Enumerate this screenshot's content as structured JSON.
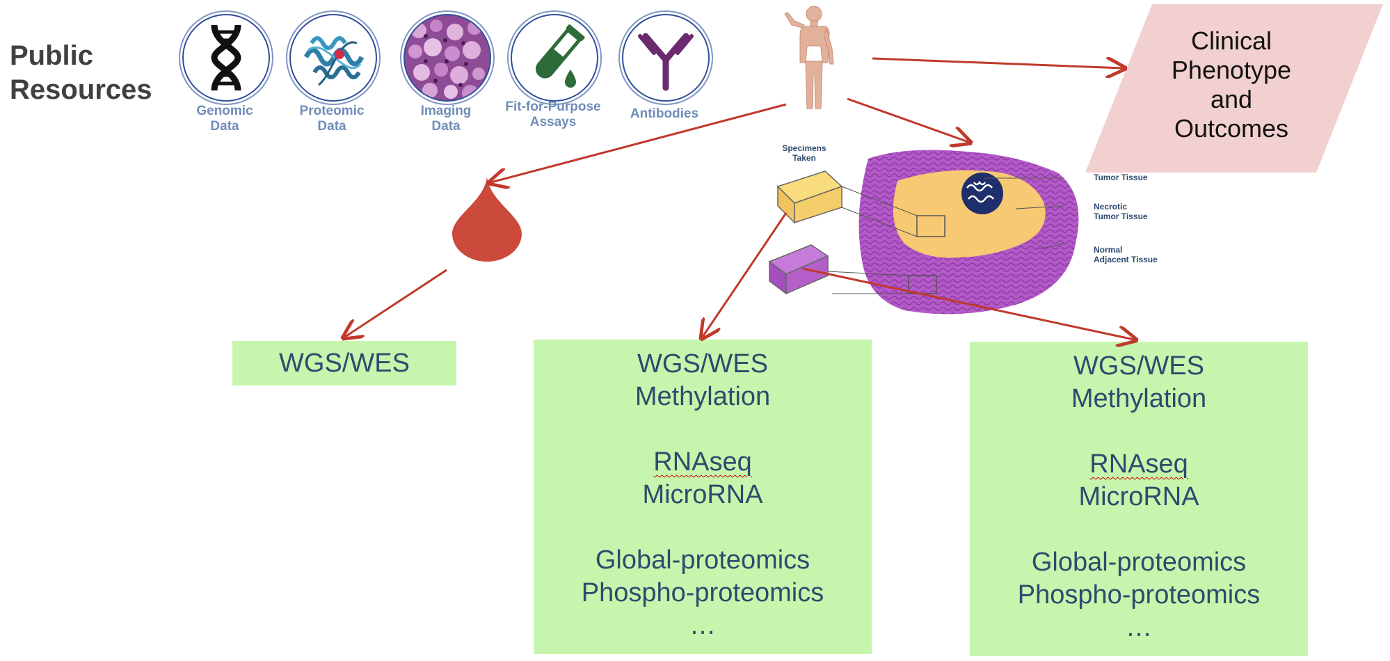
{
  "title": "Public Resources",
  "resources": [
    {
      "icon": "dna-icon",
      "line1": "Genomic",
      "line2": "Data"
    },
    {
      "icon": "protein-structure-icon",
      "line1": "Proteomic",
      "line2": "Data"
    },
    {
      "icon": "tissue-histology-icon",
      "line1": "Imaging",
      "line2": "Data"
    },
    {
      "icon": "test-tube-icon",
      "line1": "Fit-for-Purpose",
      "line2": "Assays"
    },
    {
      "icon": "antibody-icon",
      "line1": "Antibodies",
      "line2": ""
    }
  ],
  "clinical": {
    "lines": [
      "Clinical",
      "Phenotype",
      "and",
      "Outcomes"
    ]
  },
  "specimen": {
    "taken": [
      "Specimens",
      "Taken"
    ],
    "tumor": [
      "Tumor Tissue"
    ],
    "necrotic": [
      "Necrotic",
      "Tumor Tissue"
    ],
    "normal": [
      "Normal",
      "Adjacent Tissue"
    ]
  },
  "assays": {
    "blood": [
      "WGS/WES"
    ],
    "tumor": [
      "WGS/WES",
      "Methylation",
      "",
      "RNAseq",
      "MicroRNA",
      "",
      "Global-proteomics",
      "Phospho-proteomics",
      "…"
    ],
    "normal": [
      "WGS/WES",
      "Methylation",
      "",
      "RNAseq",
      "MicroRNA",
      "",
      "Global-proteomics",
      "Phospho-proteomics",
      "…"
    ]
  },
  "colors": {
    "arrow": "#c0392b",
    "assay_box": "#c6f6ad",
    "assay_text": "#2f4a6e",
    "clinical_fill": "#f2d0cf",
    "blood": "#cc4a3c",
    "tissue_purple": "#b35ac8",
    "tumor_yellow": "#f6c972"
  }
}
